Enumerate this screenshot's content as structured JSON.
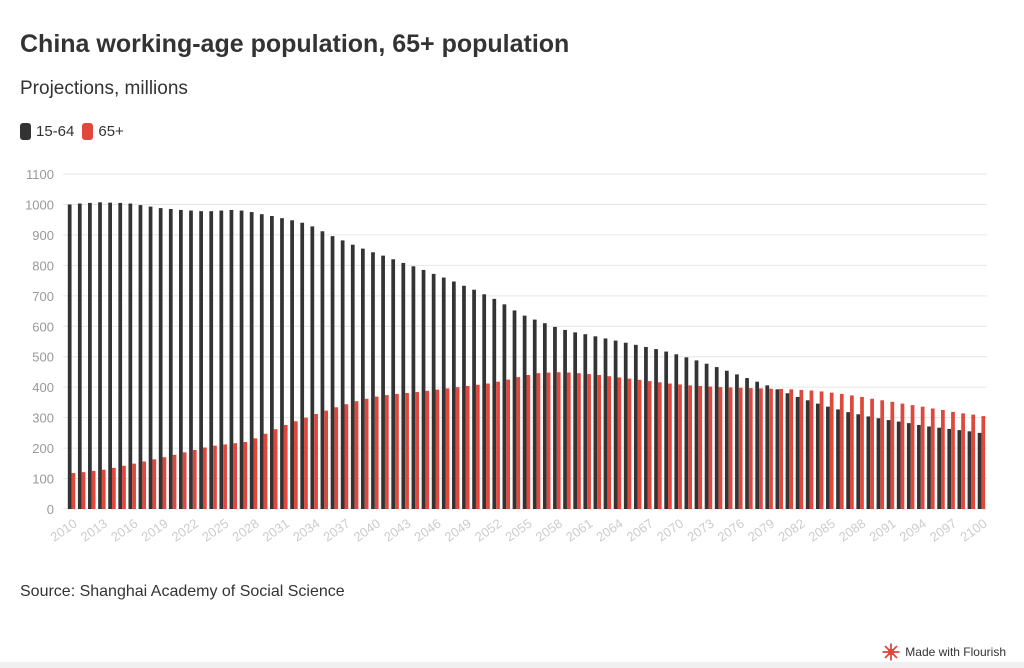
{
  "header": {
    "title": "China working-age population, 65+ population",
    "subtitle": "Projections, millions"
  },
  "footer": {
    "source": "Source: Shanghai Academy of Social Science",
    "credit": "Made with Flourish"
  },
  "colors": {
    "working_age": "#333333",
    "elderly": "#e0473d",
    "grid": "#e6e6e6",
    "axis_text": "#999999",
    "tick_text": "#cccccc"
  },
  "chart_data": {
    "type": "bar",
    "title": "China working-age population, 65+ population",
    "subtitle": "Projections, millions",
    "xlabel": "",
    "ylabel": "",
    "ylim": [
      0,
      1100
    ],
    "yticks": [
      0,
      100,
      200,
      300,
      400,
      500,
      600,
      700,
      800,
      900,
      1000,
      1100
    ],
    "grid": true,
    "legend_position": "top-left",
    "x_label_every": 3,
    "categories": [
      2010,
      2011,
      2012,
      2013,
      2014,
      2015,
      2016,
      2017,
      2018,
      2019,
      2020,
      2021,
      2022,
      2023,
      2024,
      2025,
      2026,
      2027,
      2028,
      2029,
      2030,
      2031,
      2032,
      2033,
      2034,
      2035,
      2036,
      2037,
      2038,
      2039,
      2040,
      2041,
      2042,
      2043,
      2044,
      2045,
      2046,
      2047,
      2048,
      2049,
      2050,
      2051,
      2052,
      2053,
      2054,
      2055,
      2056,
      2057,
      2058,
      2059,
      2060,
      2061,
      2062,
      2063,
      2064,
      2065,
      2066,
      2067,
      2068,
      2069,
      2070,
      2071,
      2072,
      2073,
      2074,
      2075,
      2076,
      2077,
      2078,
      2079,
      2080,
      2081,
      2082,
      2083,
      2084,
      2085,
      2086,
      2087,
      2088,
      2089,
      2090,
      2091,
      2092,
      2093,
      2094,
      2095,
      2096,
      2097,
      2098,
      2099,
      2100
    ],
    "series": [
      {
        "name": "15-64",
        "color": "#333333",
        "values": [
          1000,
          1003,
          1005,
          1007,
          1006,
          1005,
          1003,
          998,
          993,
          988,
          985,
          982,
          980,
          978,
          978,
          980,
          982,
          980,
          975,
          968,
          962,
          955,
          948,
          940,
          928,
          912,
          896,
          882,
          868,
          855,
          843,
          832,
          820,
          808,
          797,
          785,
          772,
          760,
          747,
          733,
          720,
          705,
          690,
          672,
          652,
          635,
          622,
          610,
          598,
          588,
          580,
          574,
          567,
          560,
          553,
          546,
          539,
          532,
          525,
          517,
          508,
          498,
          488,
          477,
          466,
          454,
          442,
          430,
          418,
          406,
          393,
          380,
          368,
          357,
          346,
          336,
          327,
          318,
          311,
          304,
          298,
          292,
          287,
          282,
          276,
          271,
          267,
          263,
          259,
          255,
          250
        ]
      },
      {
        "name": "65+",
        "color": "#e0473d",
        "values": [
          118,
          121,
          125,
          129,
          135,
          142,
          149,
          156,
          163,
          170,
          178,
          186,
          194,
          202,
          208,
          212,
          216,
          220,
          232,
          247,
          262,
          276,
          288,
          300,
          312,
          323,
          334,
          344,
          354,
          362,
          369,
          374,
          378,
          381,
          384,
          388,
          392,
          396,
          400,
          404,
          408,
          412,
          418,
          425,
          433,
          440,
          446,
          448,
          449,
          448,
          446,
          443,
          440,
          436,
          432,
          428,
          424,
          420,
          416,
          412,
          409,
          406,
          404,
          402,
          400,
          399,
          398,
          397,
          396,
          395,
          394,
          393,
          391,
          389,
          386,
          382,
          378,
          373,
          368,
          362,
          357,
          352,
          346,
          341,
          336,
          330,
          325,
          319,
          314,
          310,
          305
        ]
      }
    ]
  }
}
